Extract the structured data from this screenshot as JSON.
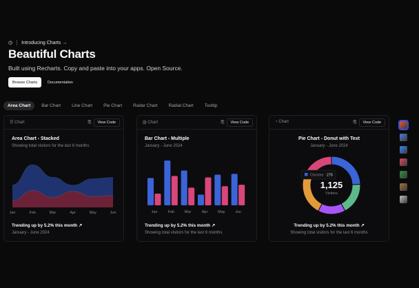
{
  "hero": {
    "intro": "Introducing Charts →",
    "title": "Beautiful Charts",
    "subtitle": "Built using Recharts. Copy and paste into your apps. Open Source.",
    "browse": "Browse Charts",
    "docs": "Documentation"
  },
  "tabs": [
    "Area Chart",
    "Bar Chart",
    "Line Chart",
    "Pie Chart",
    "Radar Chart",
    "Radial Chart",
    "Tooltip"
  ],
  "active_tab": "Area Chart",
  "card_label": "Chart",
  "view_code": "View Code",
  "cards": [
    {
      "title": "Area Chart - Stacked",
      "desc": "Showing total visitors for the last 6 months",
      "foot1": "Trending up by 5.2% this month",
      "foot2": "January - June 2024"
    },
    {
      "title": "Bar Chart - Multiple",
      "desc": "January - June 2024",
      "foot1": "Trending up by 5.2% this month",
      "foot2": "Showing total visitors for the last 6 months"
    },
    {
      "title": "Pie Chart - Donut with Text",
      "desc": "January - June 2024",
      "foot1": "Trending up by 5.2% this month",
      "foot2": "Showing total visitors for the last 6 months"
    }
  ],
  "chart_data": [
    {
      "type": "area",
      "stacked": true,
      "categories": [
        "Jan",
        "Feb",
        "Mar",
        "Apr",
        "May",
        "Jun"
      ],
      "series": [
        {
          "values": [
            80,
            200,
            120,
            190,
            130,
            140
          ],
          "color": "#6b2238"
        },
        {
          "values": [
            186,
            305,
            237,
            73,
            209,
            214
          ],
          "color": "#1e3370"
        }
      ]
    },
    {
      "type": "bar",
      "categories": [
        "Jan",
        "Feb",
        "Mar",
        "Apr",
        "May",
        "Jun"
      ],
      "series": [
        {
          "values": [
            186,
            305,
            237,
            73,
            209,
            214
          ],
          "color": "#3b64d9"
        },
        {
          "values": [
            80,
            200,
            120,
            190,
            130,
            140
          ],
          "color": "#d9467a"
        }
      ]
    },
    {
      "type": "pie",
      "donut": true,
      "total": "1,125",
      "total_label": "Visitors",
      "slices": [
        {
          "name": "Chrome",
          "value": 275,
          "color": "#3b64d9"
        },
        {
          "value": 200,
          "color": "#5bb98c"
        },
        {
          "value": 173,
          "color": "#a855f7"
        },
        {
          "value": 287,
          "color": "#e39a3b"
        },
        {
          "value": 190,
          "color": "#d9467a"
        }
      ],
      "tooltip": {
        "label": "Chrome",
        "value": "275"
      }
    }
  ],
  "themes": [
    "#e0563b",
    "#4f7be0",
    "#3b82f6",
    "#e04663",
    "#2f8f3a",
    "#a07040",
    "#bdbdbd"
  ]
}
